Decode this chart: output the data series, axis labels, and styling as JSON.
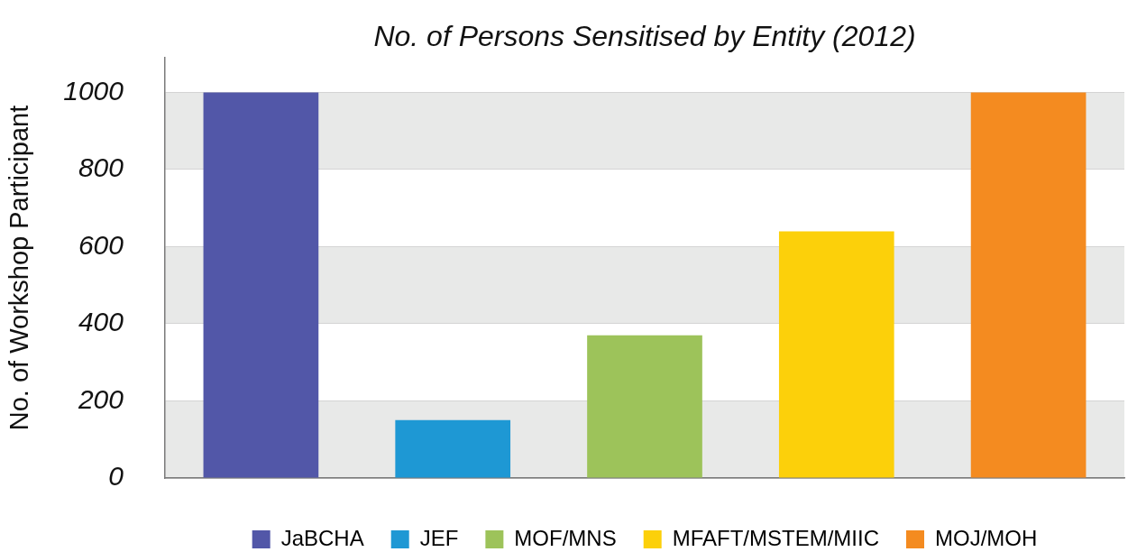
{
  "chart_data": {
    "type": "bar",
    "title": "No. of Persons Sensitised by Entity (2012)",
    "ylabel": "No. of Workshop Participant",
    "categories": [
      null,
      null,
      null,
      null,
      null
    ],
    "series": [
      {
        "name": "JaBCHA",
        "color": "#5257a8",
        "values": [
          1000,
          null,
          null,
          null,
          null
        ]
      },
      {
        "name": "JEF",
        "color": "#1e98d4",
        "values": [
          null,
          150,
          null,
          null,
          null
        ]
      },
      {
        "name": "MOF/MNS",
        "color": "#9dc35a",
        "values": [
          null,
          null,
          370,
          null,
          null
        ]
      },
      {
        "name": "MFAFT/MSTEM/MIIC",
        "color": "#fcd00a",
        "values": [
          null,
          null,
          null,
          640,
          null
        ]
      },
      {
        "name": "MOJ/MOH",
        "color": "#f48b20",
        "values": [
          null,
          null,
          null,
          null,
          1000
        ]
      }
    ],
    "ylim": [
      0,
      1090
    ],
    "yticks": [
      0,
      200,
      400,
      600,
      800,
      1000
    ],
    "grid": "y",
    "legend": "bottom"
  }
}
